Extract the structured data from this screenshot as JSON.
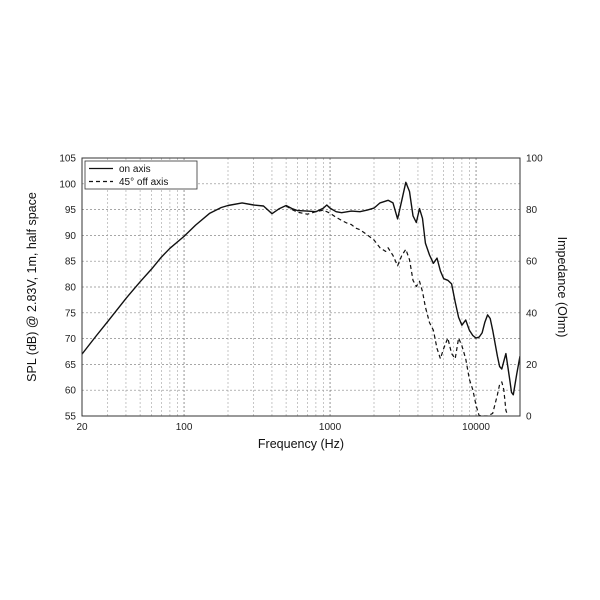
{
  "chart_data": {
    "type": "line",
    "xlabel": "Frequency (Hz)",
    "ylabel": "SPL (dB) @ 2.83V, 1m, half space",
    "y2label": "Impedance (Ohm)",
    "x_scale": "log",
    "xlim": [
      20,
      20000
    ],
    "ylim": [
      55,
      105
    ],
    "y2lim": [
      0,
      100
    ],
    "grid": true,
    "legend_position": "top-left",
    "x_tick_labels": [
      {
        "value": 20,
        "label": "20"
      },
      {
        "value": 100,
        "label": "100"
      },
      {
        "value": 1000,
        "label": "1000"
      },
      {
        "value": 10000,
        "label": "10000"
      }
    ],
    "y_ticks": [
      55,
      60,
      65,
      70,
      75,
      80,
      85,
      90,
      95,
      100,
      105
    ],
    "y2_ticks": [
      0,
      20,
      40,
      60,
      80,
      100
    ],
    "series": [
      {
        "name": "on axis",
        "style": "solid",
        "points": [
          [
            20,
            67
          ],
          [
            25,
            70.5
          ],
          [
            30,
            73.3
          ],
          [
            40,
            77.8
          ],
          [
            50,
            81
          ],
          [
            60,
            83.5
          ],
          [
            70,
            85.8
          ],
          [
            80,
            87.5
          ],
          [
            100,
            89.8
          ],
          [
            120,
            92
          ],
          [
            150,
            94.3
          ],
          [
            180,
            95.4
          ],
          [
            200,
            95.8
          ],
          [
            250,
            96.3
          ],
          [
            300,
            95.9
          ],
          [
            350,
            95.7
          ],
          [
            400,
            94.2
          ],
          [
            450,
            95.2
          ],
          [
            500,
            95.8
          ],
          [
            550,
            95.2
          ],
          [
            600,
            94.8
          ],
          [
            700,
            94.7
          ],
          [
            800,
            94.6
          ],
          [
            900,
            95.3
          ],
          [
            950,
            95.9
          ],
          [
            1000,
            95.3
          ],
          [
            1100,
            94.6
          ],
          [
            1200,
            94.4
          ],
          [
            1400,
            94.7
          ],
          [
            1600,
            94.6
          ],
          [
            1800,
            94.9
          ],
          [
            2000,
            95.3
          ],
          [
            2200,
            96.3
          ],
          [
            2500,
            96.8
          ],
          [
            2700,
            96.3
          ],
          [
            2900,
            93.2
          ],
          [
            3100,
            96.8
          ],
          [
            3300,
            100.3
          ],
          [
            3500,
            98.5
          ],
          [
            3700,
            93.8
          ],
          [
            3900,
            92.5
          ],
          [
            4100,
            95.2
          ],
          [
            4300,
            93.3
          ],
          [
            4500,
            88.5
          ],
          [
            4800,
            86.2
          ],
          [
            5100,
            84.6
          ],
          [
            5400,
            85.6
          ],
          [
            5700,
            83.1
          ],
          [
            6000,
            81.6
          ],
          [
            6400,
            81.3
          ],
          [
            6800,
            80.6
          ],
          [
            7200,
            77.1
          ],
          [
            7600,
            74.1
          ],
          [
            8000,
            72.6
          ],
          [
            8500,
            73.6
          ],
          [
            9000,
            71.6
          ],
          [
            9500,
            70.6
          ],
          [
            10000,
            70.1
          ],
          [
            10500,
            70.3
          ],
          [
            11000,
            71.1
          ],
          [
            11500,
            73.2
          ],
          [
            12000,
            74.6
          ],
          [
            12500,
            73.9
          ],
          [
            13000,
            71.6
          ],
          [
            14000,
            66.6
          ],
          [
            14500,
            64.6
          ],
          [
            15000,
            64.1
          ],
          [
            15500,
            65.6
          ],
          [
            16000,
            67.1
          ],
          [
            17000,
            62.1
          ],
          [
            17500,
            59.6
          ],
          [
            18000,
            59.1
          ],
          [
            19000,
            63.1
          ],
          [
            20000,
            66.6
          ]
        ]
      },
      {
        "name": "45° off axis",
        "style": "dashed",
        "points": [
          [
            500,
            95.7
          ],
          [
            550,
            95.0
          ],
          [
            600,
            94.5
          ],
          [
            700,
            94.1
          ],
          [
            800,
            94.6
          ],
          [
            900,
            94.9
          ],
          [
            1000,
            94.3
          ],
          [
            1100,
            93.5
          ],
          [
            1200,
            92.9
          ],
          [
            1300,
            92.4
          ],
          [
            1400,
            92.1
          ],
          [
            1500,
            91.4
          ],
          [
            1600,
            91.1
          ],
          [
            1800,
            90.1
          ],
          [
            2000,
            89.1
          ],
          [
            2200,
            87.6
          ],
          [
            2400,
            86.9
          ],
          [
            2500,
            87.6
          ],
          [
            2700,
            86.1
          ],
          [
            2900,
            84.1
          ],
          [
            3100,
            86.1
          ],
          [
            3300,
            87.3
          ],
          [
            3500,
            85.3
          ],
          [
            3700,
            81.3
          ],
          [
            3900,
            80.1
          ],
          [
            4100,
            81.1
          ],
          [
            4300,
            79.1
          ],
          [
            4500,
            76.1
          ],
          [
            4800,
            73.1
          ],
          [
            5100,
            71.6
          ],
          [
            5400,
            68.1
          ],
          [
            5700,
            66.1
          ],
          [
            6000,
            68.1
          ],
          [
            6400,
            70.1
          ],
          [
            6800,
            67.1
          ],
          [
            7200,
            66.1
          ],
          [
            7600,
            70.1
          ],
          [
            8000,
            68.6
          ],
          [
            8500,
            66.1
          ],
          [
            9000,
            62.1
          ],
          [
            9500,
            60.1
          ],
          [
            10000,
            57.1
          ],
          [
            10500,
            55.1
          ],
          [
            11000,
            55
          ],
          [
            12000,
            55
          ],
          [
            13000,
            55.5
          ],
          [
            14000,
            59.1
          ],
          [
            14500,
            61.1
          ],
          [
            15000,
            61.6
          ],
          [
            15500,
            60.1
          ],
          [
            16000,
            56.1
          ],
          [
            16500,
            55
          ]
        ]
      }
    ]
  }
}
